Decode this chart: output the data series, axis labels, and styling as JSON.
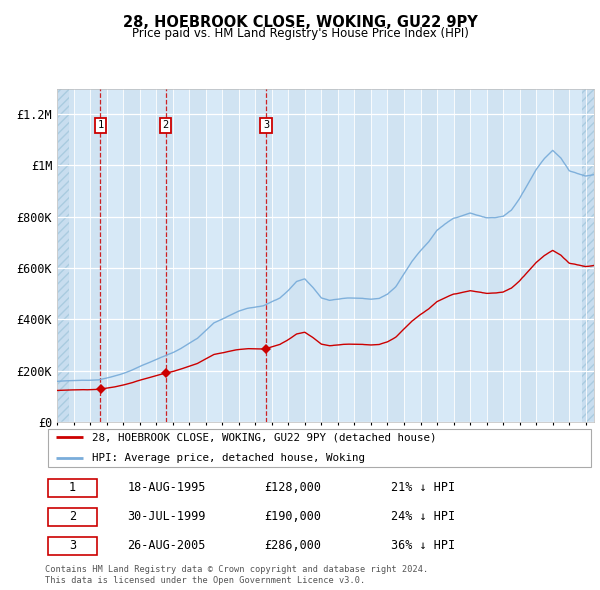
{
  "title": "28, HOEBROOK CLOSE, WOKING, GU22 9PY",
  "subtitle": "Price paid vs. HM Land Registry's House Price Index (HPI)",
  "plot_bg_color": "#d6e8f7",
  "grid_color": "#ffffff",
  "red_line_color": "#cc0000",
  "blue_line_color": "#7aadda",
  "ylim": [
    0,
    1300000
  ],
  "yticks": [
    0,
    200000,
    400000,
    600000,
    800000,
    1000000,
    1200000
  ],
  "ytick_labels": [
    "£0",
    "£200K",
    "£400K",
    "£600K",
    "£800K",
    "£1M",
    "£1.2M"
  ],
  "sales": [
    {
      "num": 1,
      "date_num": 1995.63,
      "price": 128000
    },
    {
      "num": 2,
      "date_num": 1999.58,
      "price": 190000
    },
    {
      "num": 3,
      "date_num": 2005.65,
      "price": 286000
    }
  ],
  "legend_line1": "28, HOEBROOK CLOSE, WOKING, GU22 9PY (detached house)",
  "legend_line2": "HPI: Average price, detached house, Woking",
  "table_rows": [
    [
      "1",
      "18-AUG-1995",
      "£128,000",
      "21% ↓ HPI"
    ],
    [
      "2",
      "30-JUL-1999",
      "£190,000",
      "24% ↓ HPI"
    ],
    [
      "3",
      "26-AUG-2005",
      "£286,000",
      "36% ↓ HPI"
    ]
  ],
  "footer": "Contains HM Land Registry data © Crown copyright and database right 2024.\nThis data is licensed under the Open Government Licence v3.0.",
  "xmin": 1993.0,
  "xmax": 2025.5
}
